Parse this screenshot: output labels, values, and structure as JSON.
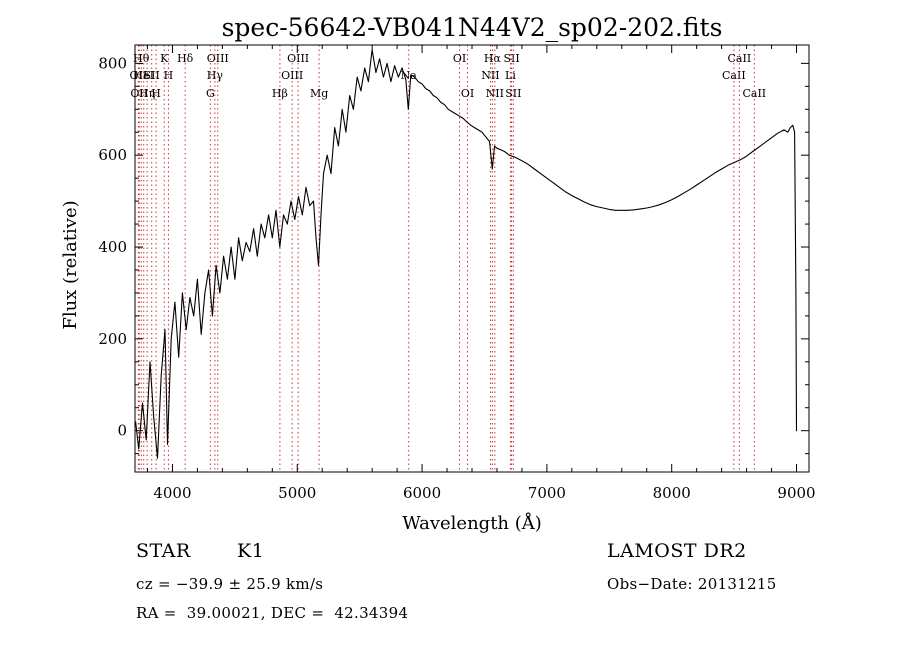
{
  "chart_data": {
    "type": "line",
    "title": "spec-56642-VB041N44V2_sp02-202.fits",
    "xlabel": "Wavelength (Å)",
    "ylabel": "Flux (relative)",
    "xlim": [
      3700,
      9100
    ],
    "ylim": [
      -90,
      840
    ],
    "xticks": [
      4000,
      5000,
      6000,
      7000,
      8000,
      9000
    ],
    "yticks": [
      0,
      200,
      400,
      600,
      800
    ],
    "grid": false,
    "line_color": "#000000",
    "line_marker_color": "#cc3333",
    "series": [
      {
        "values_xy": [
          [
            3705,
            20
          ],
          [
            3730,
            -40
          ],
          [
            3760,
            60
          ],
          [
            3790,
            -20
          ],
          [
            3820,
            150
          ],
          [
            3850,
            30
          ],
          [
            3880,
            -60
          ],
          [
            3910,
            120
          ],
          [
            3940,
            220
          ],
          [
            3960,
            -30
          ],
          [
            3990,
            200
          ],
          [
            4020,
            280
          ],
          [
            4050,
            160
          ],
          [
            4080,
            300
          ],
          [
            4110,
            220
          ],
          [
            4140,
            290
          ],
          [
            4170,
            250
          ],
          [
            4200,
            330
          ],
          [
            4230,
            210
          ],
          [
            4260,
            300
          ],
          [
            4290,
            350
          ],
          [
            4320,
            250
          ],
          [
            4350,
            360
          ],
          [
            4380,
            300
          ],
          [
            4410,
            380
          ],
          [
            4440,
            330
          ],
          [
            4470,
            400
          ],
          [
            4500,
            330
          ],
          [
            4530,
            420
          ],
          [
            4560,
            370
          ],
          [
            4590,
            410
          ],
          [
            4620,
            390
          ],
          [
            4650,
            440
          ],
          [
            4680,
            380
          ],
          [
            4710,
            450
          ],
          [
            4740,
            420
          ],
          [
            4770,
            470
          ],
          [
            4800,
            420
          ],
          [
            4830,
            480
          ],
          [
            4860,
            400
          ],
          [
            4890,
            470
          ],
          [
            4920,
            450
          ],
          [
            4950,
            500
          ],
          [
            4980,
            460
          ],
          [
            5010,
            510
          ],
          [
            5040,
            470
          ],
          [
            5070,
            530
          ],
          [
            5100,
            490
          ],
          [
            5130,
            500
          ],
          [
            5150,
            420
          ],
          [
            5170,
            360
          ],
          [
            5190,
            470
          ],
          [
            5210,
            560
          ],
          [
            5240,
            600
          ],
          [
            5270,
            560
          ],
          [
            5300,
            660
          ],
          [
            5330,
            620
          ],
          [
            5360,
            700
          ],
          [
            5390,
            650
          ],
          [
            5420,
            730
          ],
          [
            5450,
            700
          ],
          [
            5480,
            770
          ],
          [
            5510,
            740
          ],
          [
            5540,
            790
          ],
          [
            5570,
            760
          ],
          [
            5600,
            830
          ],
          [
            5630,
            780
          ],
          [
            5660,
            810
          ],
          [
            5690,
            770
          ],
          [
            5720,
            800
          ],
          [
            5750,
            760
          ],
          [
            5780,
            795
          ],
          [
            5810,
            770
          ],
          [
            5840,
            790
          ],
          [
            5870,
            765
          ],
          [
            5890,
            700
          ],
          [
            5910,
            775
          ],
          [
            5940,
            770
          ],
          [
            5970,
            760
          ],
          [
            6000,
            755
          ],
          [
            6030,
            745
          ],
          [
            6060,
            740
          ],
          [
            6090,
            730
          ],
          [
            6120,
            725
          ],
          [
            6150,
            715
          ],
          [
            6180,
            710
          ],
          [
            6210,
            700
          ],
          [
            6240,
            695
          ],
          [
            6270,
            690
          ],
          [
            6300,
            685
          ],
          [
            6330,
            680
          ],
          [
            6360,
            672
          ],
          [
            6390,
            665
          ],
          [
            6420,
            660
          ],
          [
            6450,
            655
          ],
          [
            6480,
            650
          ],
          [
            6510,
            640
          ],
          [
            6540,
            630
          ],
          [
            6563,
            570
          ],
          [
            6580,
            620
          ],
          [
            6600,
            615
          ],
          [
            6630,
            612
          ],
          [
            6660,
            608
          ],
          [
            6700,
            600
          ],
          [
            6750,
            595
          ],
          [
            6800,
            588
          ],
          [
            6850,
            580
          ],
          [
            6900,
            570
          ],
          [
            6950,
            560
          ],
          [
            7000,
            550
          ],
          [
            7050,
            540
          ],
          [
            7100,
            530
          ],
          [
            7150,
            520
          ],
          [
            7200,
            512
          ],
          [
            7250,
            505
          ],
          [
            7300,
            498
          ],
          [
            7350,
            492
          ],
          [
            7400,
            488
          ],
          [
            7450,
            485
          ],
          [
            7500,
            482
          ],
          [
            7550,
            480
          ],
          [
            7600,
            480
          ],
          [
            7650,
            480
          ],
          [
            7700,
            481
          ],
          [
            7750,
            483
          ],
          [
            7800,
            485
          ],
          [
            7850,
            488
          ],
          [
            7900,
            492
          ],
          [
            7950,
            497
          ],
          [
            8000,
            503
          ],
          [
            8050,
            510
          ],
          [
            8100,
            518
          ],
          [
            8150,
            526
          ],
          [
            8200,
            535
          ],
          [
            8250,
            544
          ],
          [
            8300,
            553
          ],
          [
            8350,
            562
          ],
          [
            8400,
            570
          ],
          [
            8450,
            578
          ],
          [
            8500,
            584
          ],
          [
            8550,
            590
          ],
          [
            8600,
            598
          ],
          [
            8650,
            608
          ],
          [
            8700,
            618
          ],
          [
            8750,
            628
          ],
          [
            8800,
            638
          ],
          [
            8850,
            648
          ],
          [
            8900,
            655
          ],
          [
            8930,
            650
          ],
          [
            8950,
            660
          ],
          [
            8970,
            665
          ],
          [
            8985,
            650
          ],
          [
            8995,
            300
          ],
          [
            9000,
            0
          ],
          [
            9005,
            0
          ]
        ]
      }
    ],
    "line_markers": [
      {
        "x": 3727,
        "row": 1,
        "label": "OII"
      },
      {
        "x": 3734,
        "row": 2,
        "label": "OII"
      },
      {
        "x": 3750,
        "row": 0,
        "label": "Hθ"
      },
      {
        "x": 3770,
        "row": 1,
        "label": "HeI"
      },
      {
        "x": 3797,
        "row": 2,
        "label": "Hη"
      },
      {
        "x": 3834,
        "row": 1,
        "label": "SII"
      },
      {
        "x": 3869,
        "row": 2,
        "label": "H"
      },
      {
        "x": 3934,
        "row": 0,
        "label": "K"
      },
      {
        "x": 3968,
        "row": 1,
        "label": "H"
      },
      {
        "x": 4102,
        "row": 0,
        "label": "Hδ"
      },
      {
        "x": 4304,
        "row": 2,
        "label": "G"
      },
      {
        "x": 4340,
        "row": 1,
        "label": "Hγ"
      },
      {
        "x": 4363,
        "row": 0,
        "label": "OIII"
      },
      {
        "x": 4861,
        "row": 2,
        "label": "Hβ"
      },
      {
        "x": 4959,
        "row": 1,
        "label": "OIII"
      },
      {
        "x": 5007,
        "row": 0,
        "label": "OIII"
      },
      {
        "x": 5175,
        "row": 2,
        "label": "Mg"
      },
      {
        "x": 5893,
        "row": 1,
        "label": "Na"
      },
      {
        "x": 6300,
        "row": 0,
        "label": "OI"
      },
      {
        "x": 6364,
        "row": 2,
        "label": "OI"
      },
      {
        "x": 6548,
        "row": 1,
        "label": "NII"
      },
      {
        "x": 6563,
        "row": 0,
        "label": "Hα"
      },
      {
        "x": 6583,
        "row": 2,
        "label": "NII"
      },
      {
        "x": 6708,
        "row": 1,
        "label": "Li"
      },
      {
        "x": 6717,
        "row": 0,
        "label": "SII"
      },
      {
        "x": 6731,
        "row": 2,
        "label": "SII"
      },
      {
        "x": 8498,
        "row": 1,
        "label": "CaII"
      },
      {
        "x": 8542,
        "row": 0,
        "label": "CaII"
      },
      {
        "x": 8662,
        "row": 2,
        "label": "CaII"
      }
    ]
  },
  "info": {
    "class": "STAR",
    "subclass": "K1",
    "survey": "LAMOST DR2",
    "redshift": "cz = −39.9 ± 25.9 km/s",
    "obs_date": "Obs−Date: 20131215",
    "coords": "RA =  39.00021, DEC =  42.34394"
  }
}
